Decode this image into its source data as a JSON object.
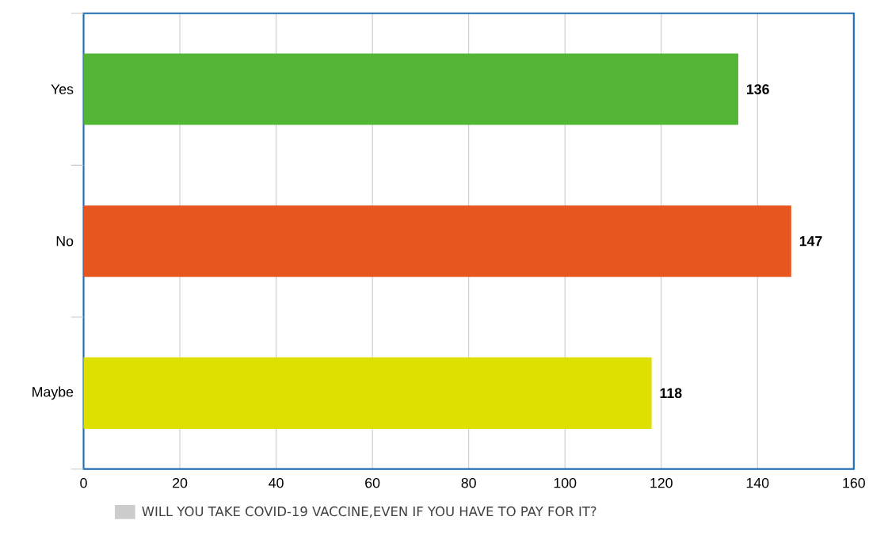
{
  "chart_data": {
    "type": "bar",
    "orientation": "horizontal",
    "categories": [
      "Yes",
      "No",
      "Maybe"
    ],
    "series": [
      {
        "name": "WILL YOU TAKE COVID-19 VACCINE,EVEN IF YOU HAVE TO PAY FOR IT?",
        "color": "#cccccc",
        "colors": [
          "#52b535",
          "#e8561f",
          "#dde000"
        ],
        "values": [
          136,
          147,
          118
        ]
      }
    ],
    "xlim": [
      0,
      160
    ],
    "xticks": [
      0,
      20,
      40,
      60,
      80,
      100,
      120,
      140,
      160
    ],
    "grid": "x",
    "data_labels": true,
    "legend": "bottom"
  }
}
